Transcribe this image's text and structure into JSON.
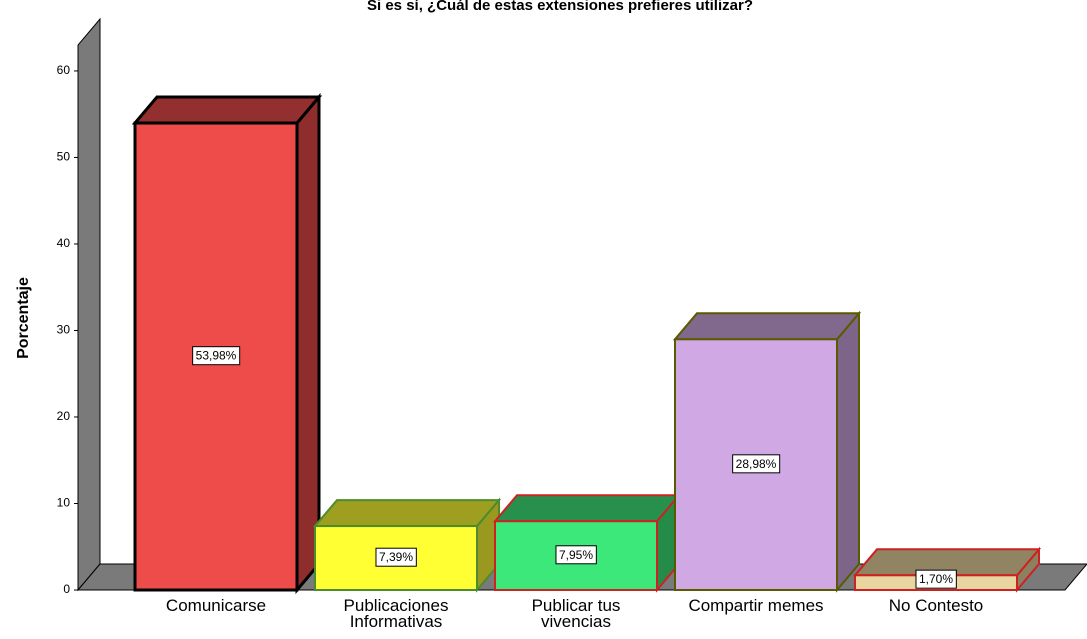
{
  "chart_data": {
    "type": "bar3d",
    "title": "Si es sí, ¿Cuál de estas extensiones prefieres utilizar?",
    "ylabel": "Porcentaje",
    "categories": [
      "Comunicarse",
      "Publicaciones Informativas",
      "Publicar tus vivencias",
      "Compartir memes",
      "No Contesto"
    ],
    "values": [
      53.98,
      7.39,
      7.95,
      28.98,
      1.7
    ],
    "value_labels": [
      "53,98%",
      "7,39%",
      "7,95%",
      "28,98%",
      "1,70%"
    ],
    "colors": [
      "#ee4b4b",
      "#ffff33",
      "#3de87a",
      "#d0a8e4",
      "#e8d5a0"
    ],
    "edgecolors": [
      "#000000",
      "#4c8c2c",
      "#cc2222",
      "#5a5a00",
      "#cc2222"
    ],
    "ylim": [
      0,
      63
    ],
    "yticks": [
      0,
      10,
      20,
      30,
      40,
      50,
      60
    ],
    "grid": false
  }
}
